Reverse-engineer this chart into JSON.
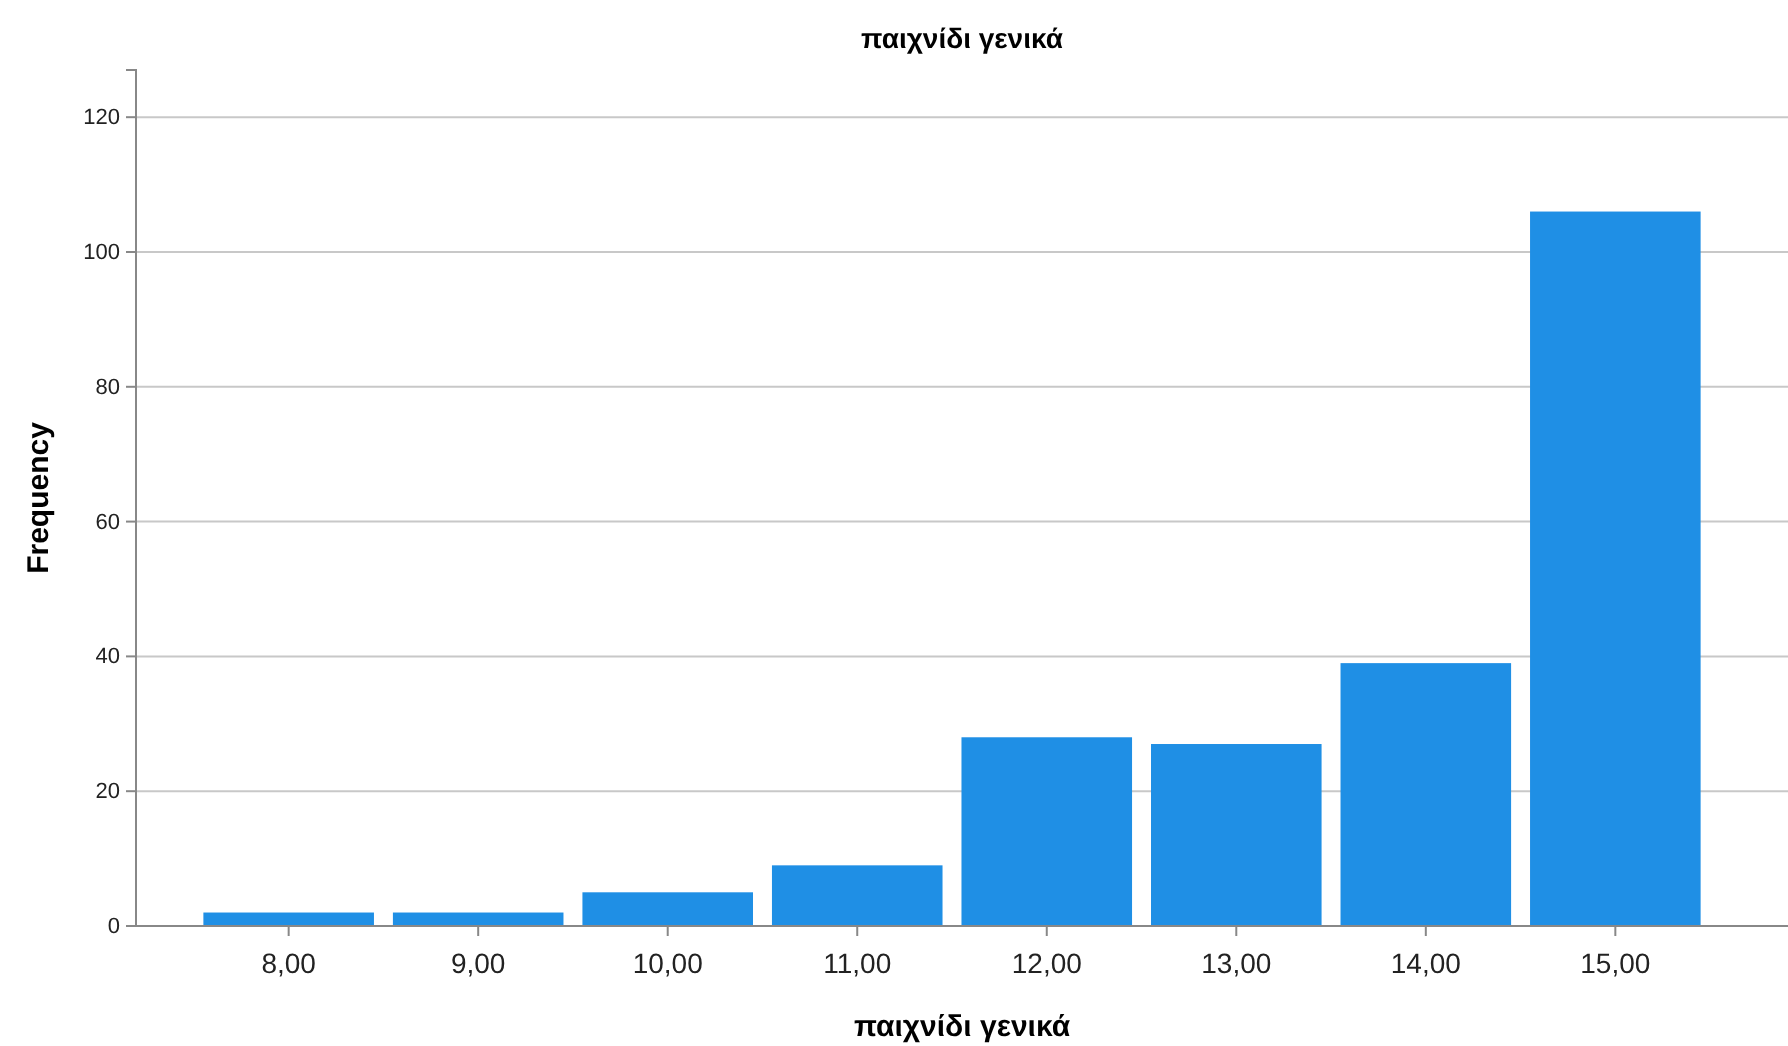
{
  "chart_data": {
    "type": "bar",
    "title": "παιχνίδι γενικά",
    "xlabel": "παιχνίδι γενικά",
    "ylabel": "Frequency",
    "categories": [
      "8,00",
      "9,00",
      "10,00",
      "11,00",
      "12,00",
      "13,00",
      "14,00",
      "15,00"
    ],
    "values": [
      2,
      2,
      5,
      9,
      28,
      27,
      39,
      106
    ],
    "color": "#1f8fe5",
    "ylim": [
      0,
      127
    ],
    "yticks": [
      0,
      20,
      40,
      60,
      80,
      100,
      120
    ],
    "grid": "y"
  }
}
